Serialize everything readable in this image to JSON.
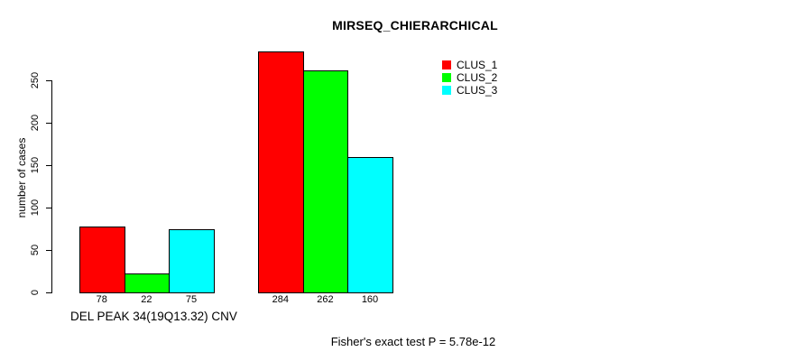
{
  "page": {
    "background_color": "#ffffff",
    "text_color": "#000000"
  },
  "chart_data": {
    "type": "bar",
    "title": "MIRSEQ_CHIERARCHICAL",
    "xlabel": "DEL PEAK 34(19Q13.32) CNV",
    "ylabel": "number of cases",
    "footnote": "Fisher's exact test P = 5.78e-12",
    "ylim": [
      0,
      250
    ],
    "yticks": [
      0,
      50,
      100,
      150,
      200,
      250
    ],
    "grid": false,
    "legend_position": "top-right",
    "axis_color": "#000000",
    "bar_border_color": "#000000",
    "group_count": 2,
    "series": [
      {
        "name": "CLUS_1",
        "color": "#ff0000",
        "values": [
          78,
          284
        ]
      },
      {
        "name": "CLUS_2",
        "color": "#00ff00",
        "values": [
          22,
          262
        ]
      },
      {
        "name": "CLUS_3",
        "color": "#00ffff",
        "values": [
          75,
          160
        ]
      }
    ],
    "bar_value_labels": [
      [
        "78",
        "22",
        "75"
      ],
      [
        "284",
        "262",
        "160"
      ]
    ]
  }
}
